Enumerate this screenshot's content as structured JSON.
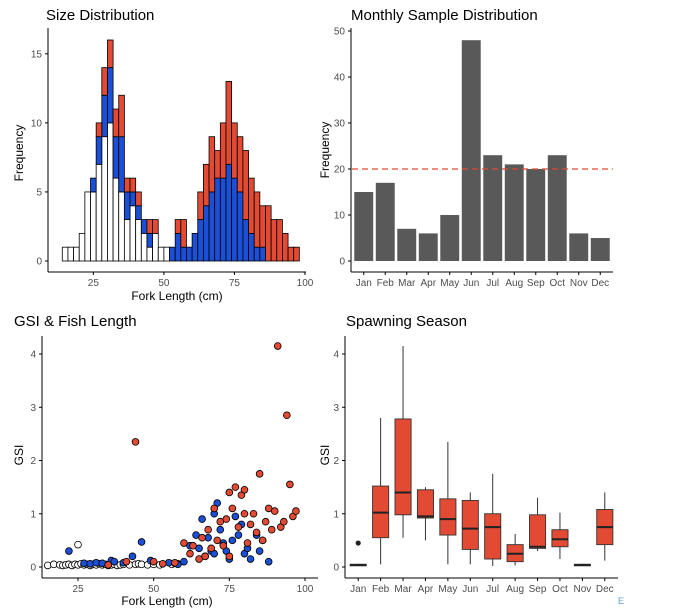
{
  "colors": {
    "white": "#ffffff",
    "blue": "#1a4fd6",
    "red": "#e24a33",
    "bar_gray": "#595959",
    "ref_line": "#e24a33",
    "axis": "#000000",
    "tick_text": "#4d4d4d"
  },
  "corner_mark": "E",
  "chart_data": [
    {
      "type": "bar",
      "subtype": "stacked-histogram",
      "title": "Size Distribution",
      "xlabel": "Fork Length (cm)",
      "ylabel": "Frequency",
      "x_ticks": [
        25,
        50,
        75,
        100
      ],
      "y_ticks": [
        0,
        5,
        10,
        15
      ],
      "xlim": [
        10,
        100
      ],
      "ylim": [
        0,
        16
      ],
      "bin_width": 2,
      "bins": [
        14,
        16,
        18,
        20,
        22,
        24,
        26,
        28,
        30,
        32,
        34,
        36,
        38,
        40,
        42,
        44,
        46,
        48,
        50,
        52,
        54,
        56,
        58,
        60,
        62,
        64,
        66,
        68,
        70,
        72,
        74,
        76,
        78,
        80,
        82,
        84,
        86,
        88,
        90,
        92,
        94,
        96
      ],
      "series": [
        {
          "color": "white",
          "values": [
            1,
            1,
            1,
            2,
            5,
            5,
            7,
            9,
            10,
            6,
            5,
            3,
            4,
            3,
            2,
            1,
            2,
            1,
            1,
            0,
            0,
            0,
            0,
            0,
            0,
            0,
            0,
            0,
            0,
            0,
            0,
            0,
            0,
            0,
            0,
            0,
            0,
            0,
            0,
            0,
            0,
            0
          ]
        },
        {
          "color": "blue",
          "values": [
            0,
            0,
            0,
            0,
            0,
            1,
            2,
            3,
            4,
            3,
            4,
            2,
            1,
            1,
            1,
            1,
            0,
            0,
            0,
            1,
            2,
            1,
            1,
            2,
            3,
            4,
            5,
            6,
            6,
            7,
            6,
            5,
            3,
            2,
            1,
            1,
            0,
            0,
            0,
            0,
            0,
            0
          ]
        },
        {
          "color": "red",
          "values": [
            0,
            0,
            0,
            0,
            0,
            0,
            1,
            2,
            2,
            2,
            3,
            1,
            1,
            1,
            0,
            1,
            1,
            0,
            0,
            0,
            1,
            2,
            0,
            0,
            2,
            3,
            4,
            2,
            4,
            6,
            4,
            4,
            5,
            4,
            4,
            3,
            4,
            3,
            3,
            2,
            1,
            1
          ]
        }
      ]
    },
    {
      "type": "bar",
      "title": "Monthly Sample Distribution",
      "xlabel": "",
      "ylabel": "Frequency",
      "categories": [
        "Jan",
        "Feb",
        "Mar",
        "Apr",
        "May",
        "Jun",
        "Jul",
        "Aug",
        "Sep",
        "Oct",
        "Nov",
        "Dec"
      ],
      "values": [
        15,
        17,
        7,
        6,
        10,
        48,
        23,
        21,
        20,
        23,
        6,
        5
      ],
      "y_ticks": [
        0,
        10,
        20,
        30,
        40,
        50
      ],
      "ylim": [
        0,
        50
      ],
      "reference_line": 20
    },
    {
      "type": "scatter",
      "title": "GSI & Fish Length",
      "xlabel": "Fork Length (cm)",
      "ylabel": "GSI",
      "x_ticks": [
        25,
        50,
        75,
        100
      ],
      "y_ticks": [
        0,
        1,
        2,
        3,
        4
      ],
      "xlim": [
        13,
        99
      ],
      "ylim": [
        0,
        4.2
      ],
      "series": [
        {
          "color": "white",
          "points": [
            [
              15,
              0.03
            ],
            [
              17,
              0.05
            ],
            [
              19,
              0.04
            ],
            [
              20,
              0.03
            ],
            [
              21,
              0.04
            ],
            [
              22,
              0.05
            ],
            [
              23,
              0.03
            ],
            [
              24,
              0.05
            ],
            [
              25,
              0.04
            ],
            [
              25,
              0.42
            ],
            [
              26,
              0.06
            ],
            [
              27,
              0.04
            ],
            [
              28,
              0.05
            ],
            [
              29,
              0.03
            ],
            [
              30,
              0.05
            ],
            [
              31,
              0.04
            ],
            [
              32,
              0.06
            ],
            [
              33,
              0.04
            ],
            [
              34,
              0.05
            ],
            [
              35,
              0.03
            ],
            [
              36,
              0.04
            ],
            [
              37,
              0.05
            ],
            [
              38,
              0.03
            ],
            [
              39,
              0.04
            ],
            [
              40,
              0.05
            ],
            [
              42,
              0.04
            ],
            [
              44,
              0.05
            ],
            [
              45,
              0.06
            ],
            [
              46,
              0.05
            ],
            [
              48,
              0.04
            ],
            [
              50,
              0.05
            ],
            [
              52,
              0.04
            ],
            [
              56,
              0.05
            ],
            [
              58,
              0.06
            ]
          ]
        },
        {
          "color": "blue",
          "points": [
            [
              22,
              0.3
            ],
            [
              27,
              0.07
            ],
            [
              29,
              0.06
            ],
            [
              31,
              0.08
            ],
            [
              33,
              0.07
            ],
            [
              36,
              0.12
            ],
            [
              37,
              0.1
            ],
            [
              40,
              0.08
            ],
            [
              43,
              0.2
            ],
            [
              46,
              0.47
            ],
            [
              49,
              0.12
            ],
            [
              55,
              0.08
            ],
            [
              57,
              0.07
            ],
            [
              58,
              0.05
            ],
            [
              60,
              0.1
            ],
            [
              62,
              0.4
            ],
            [
              64,
              0.6
            ],
            [
              65,
              0.35
            ],
            [
              66,
              0.9
            ],
            [
              67,
              0.2
            ],
            [
              68,
              0.55
            ],
            [
              69,
              0.3
            ],
            [
              70,
              1.0
            ],
            [
              70,
              0.25
            ],
            [
              71,
              1.2
            ],
            [
              72,
              0.7
            ],
            [
              73,
              0.45
            ],
            [
              74,
              0.3
            ],
            [
              75,
              0.15
            ],
            [
              76,
              0.5
            ],
            [
              77,
              0.95
            ],
            [
              78,
              0.6
            ],
            [
              79,
              0.8
            ],
            [
              80,
              0.25
            ],
            [
              81,
              0.35
            ],
            [
              82,
              0.15
            ],
            [
              84,
              0.6
            ],
            [
              85,
              0.3
            ],
            [
              86,
              0.5
            ],
            [
              88,
              0.1
            ]
          ]
        },
        {
          "color": "red",
          "points": [
            [
              35,
              0.04
            ],
            [
              41,
              0.1
            ],
            [
              44,
              2.35
            ],
            [
              50,
              0.1
            ],
            [
              53,
              0.06
            ],
            [
              57,
              0.08
            ],
            [
              60,
              0.45
            ],
            [
              62,
              0.25
            ],
            [
              63,
              0.4
            ],
            [
              65,
              0.15
            ],
            [
              66,
              0.55
            ],
            [
              67,
              0.2
            ],
            [
              68,
              0.7
            ],
            [
              69,
              0.35
            ],
            [
              70,
              1.1
            ],
            [
              71,
              0.5
            ],
            [
              72,
              0.85
            ],
            [
              73,
              0.4
            ],
            [
              74,
              0.9
            ],
            [
              75,
              0.2
            ],
            [
              75,
              1.4
            ],
            [
              76,
              1.1
            ],
            [
              77,
              1.5
            ],
            [
              78,
              0.75
            ],
            [
              79,
              1.35
            ],
            [
              80,
              1.0
            ],
            [
              80,
              1.45
            ],
            [
              81,
              0.45
            ],
            [
              82,
              0.8
            ],
            [
              83,
              1.0
            ],
            [
              84,
              0.65
            ],
            [
              85,
              1.75
            ],
            [
              86,
              0.5
            ],
            [
              87,
              0.85
            ],
            [
              88,
              1.1
            ],
            [
              89,
              0.7
            ],
            [
              90,
              1.05
            ],
            [
              91,
              4.15
            ],
            [
              92,
              0.75
            ],
            [
              93,
              0.85
            ],
            [
              94,
              2.85
            ],
            [
              95,
              1.55
            ],
            [
              96,
              0.95
            ],
            [
              97,
              1.05
            ]
          ]
        }
      ]
    },
    {
      "type": "boxplot",
      "title": "Spawning Season",
      "xlabel": "",
      "ylabel": "GSI",
      "categories": [
        "Jan",
        "Feb",
        "Mar",
        "Apr",
        "May",
        "Jun",
        "Jul",
        "Aug",
        "Sep",
        "Oct",
        "Nov",
        "Dec"
      ],
      "y_ticks": [
        0,
        1,
        2,
        3,
        4
      ],
      "ylim": [
        0,
        4.2
      ],
      "boxes": [
        {
          "min": 0.02,
          "q1": 0.03,
          "median": 0.04,
          "q3": 0.05,
          "max": 0.06,
          "outliers": [
            0.45
          ]
        },
        {
          "min": 0.05,
          "q1": 0.55,
          "median": 1.02,
          "q3": 1.52,
          "max": 2.8,
          "outliers": []
        },
        {
          "min": 0.55,
          "q1": 0.98,
          "median": 1.4,
          "q3": 2.78,
          "max": 4.15,
          "outliers": []
        },
        {
          "min": 0.5,
          "q1": 0.92,
          "median": 0.95,
          "q3": 1.45,
          "max": 1.5,
          "outliers": []
        },
        {
          "min": 0.05,
          "q1": 0.6,
          "median": 0.9,
          "q3": 1.28,
          "max": 2.35,
          "outliers": []
        },
        {
          "min": 0.05,
          "q1": 0.33,
          "median": 0.72,
          "q3": 1.25,
          "max": 1.4,
          "outliers": []
        },
        {
          "min": 0.02,
          "q1": 0.15,
          "median": 0.75,
          "q3": 1.0,
          "max": 1.75,
          "outliers": []
        },
        {
          "min": 0.03,
          "q1": 0.1,
          "median": 0.25,
          "q3": 0.42,
          "max": 0.62,
          "outliers": []
        },
        {
          "min": 0.3,
          "q1": 0.35,
          "median": 0.38,
          "q3": 0.98,
          "max": 1.3,
          "outliers": []
        },
        {
          "min": 0.15,
          "q1": 0.38,
          "median": 0.52,
          "q3": 0.7,
          "max": 1.02,
          "outliers": []
        },
        {
          "min": 0.02,
          "q1": 0.03,
          "median": 0.04,
          "q3": 0.05,
          "max": 0.06,
          "outliers": []
        },
        {
          "min": 0.12,
          "q1": 0.42,
          "median": 0.75,
          "q3": 1.08,
          "max": 1.4,
          "outliers": []
        }
      ]
    }
  ]
}
